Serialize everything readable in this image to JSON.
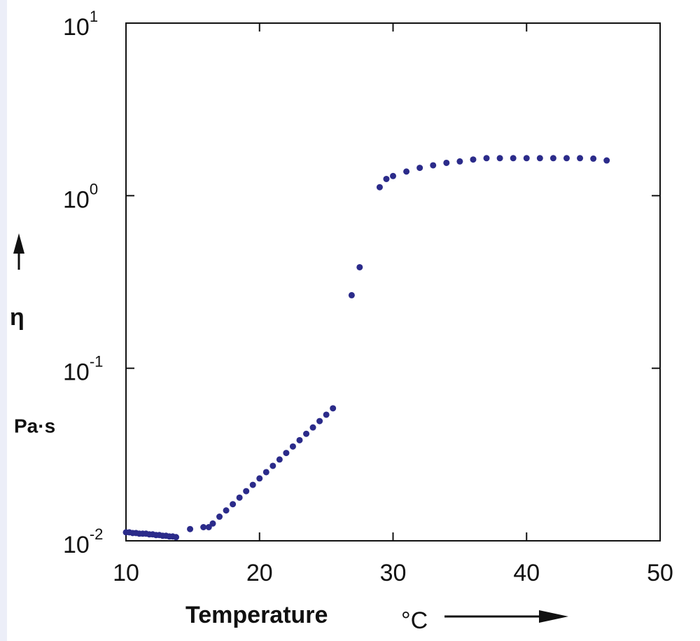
{
  "chart_data": {
    "type": "scatter",
    "x_label": "Temperature",
    "x_unit": "°C",
    "y_label": "η",
    "y_unit": "Pa·s",
    "log_y": true,
    "xlim": [
      10,
      50
    ],
    "xticks": [
      10,
      20,
      30,
      40,
      50
    ],
    "ylim": [
      0.01,
      10
    ],
    "yticks": [
      {
        "value": 0.01,
        "label": "10",
        "sup": "-2"
      },
      {
        "value": 0.1,
        "label": "10",
        "sup": "-1"
      },
      {
        "value": 1,
        "label": "10",
        "sup": "0"
      },
      {
        "value": 10,
        "label": "10",
        "sup": "1"
      }
    ],
    "series": [
      {
        "color": "#2b2b8a",
        "x": [
          10,
          10.25,
          10.5,
          10.75,
          11,
          11.25,
          11.5,
          11.75,
          12,
          12.25,
          12.5,
          12.75,
          13,
          13.25,
          13.5,
          13.75,
          14.8,
          15.8,
          16.2,
          16.5,
          17,
          17.5,
          18,
          18.5,
          19,
          19.5,
          20,
          20.5,
          21,
          21.5,
          22,
          22.5,
          23,
          23.5,
          24,
          24.5,
          25,
          25.5,
          26.9,
          27.5,
          29,
          29.5,
          30,
          31,
          32,
          33,
          34,
          35,
          36,
          37,
          38,
          39,
          40,
          41,
          42,
          43,
          44,
          45,
          46
        ],
        "values": [
          0.0112,
          0.0112,
          0.0111,
          0.0111,
          0.011,
          0.011,
          0.011,
          0.0109,
          0.0109,
          0.0108,
          0.0108,
          0.0107,
          0.0107,
          0.0106,
          0.0106,
          0.0105,
          0.0117,
          0.012,
          0.012,
          0.0126,
          0.0138,
          0.015,
          0.0163,
          0.0178,
          0.0194,
          0.0211,
          0.023,
          0.025,
          0.0272,
          0.0296,
          0.0323,
          0.0352,
          0.0383,
          0.0417,
          0.0454,
          0.0494,
          0.0538,
          0.0586,
          0.265,
          0.385,
          1.12,
          1.25,
          1.3,
          1.38,
          1.45,
          1.5,
          1.55,
          1.58,
          1.62,
          1.65,
          1.65,
          1.65,
          1.65,
          1.65,
          1.65,
          1.65,
          1.65,
          1.64,
          1.6
        ]
      }
    ]
  }
}
